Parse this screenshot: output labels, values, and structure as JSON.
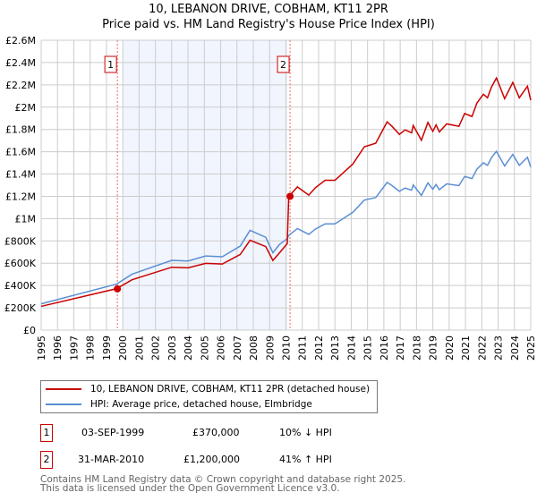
{
  "title": "10, LEBANON DRIVE, COBHAM, KT11 2PR",
  "subtitle": "Price paid vs. HM Land Registry's House Price Index (HPI)",
  "chart_data": {
    "type": "line",
    "xlim": [
      1995,
      2025
    ],
    "ylim": [
      0,
      2600000
    ],
    "x_ticks": [
      "1995",
      "1996",
      "1997",
      "1998",
      "1999",
      "2000",
      "2001",
      "2002",
      "2003",
      "2004",
      "2005",
      "2006",
      "2007",
      "2008",
      "2009",
      "2010",
      "2011",
      "2012",
      "2013",
      "2014",
      "2015",
      "2016",
      "2017",
      "2018",
      "2019",
      "2020",
      "2021",
      "2022",
      "2023",
      "2024",
      "2025"
    ],
    "y_ticks": [
      {
        "v": 0,
        "label": "£0"
      },
      {
        "v": 200000,
        "label": "£200K"
      },
      {
        "v": 400000,
        "label": "£400K"
      },
      {
        "v": 600000,
        "label": "£600K"
      },
      {
        "v": 800000,
        "label": "£800K"
      },
      {
        "v": 1000000,
        "label": "£1M"
      },
      {
        "v": 1200000,
        "label": "£1.2M"
      },
      {
        "v": 1400000,
        "label": "£1.4M"
      },
      {
        "v": 1600000,
        "label": "£1.6M"
      },
      {
        "v": 1800000,
        "label": "£1.8M"
      },
      {
        "v": 2000000,
        "label": "£2M"
      },
      {
        "v": 2200000,
        "label": "£2.2M"
      },
      {
        "v": 2400000,
        "label": "£2.4M"
      },
      {
        "v": 2600000,
        "label": "£2.6M"
      }
    ],
    "grid": true,
    "shaded_range": [
      2000.0,
      2010.1
    ],
    "series": [
      {
        "name": "10, LEBANON DRIVE, COBHAM, KT11 2PR (detached house)",
        "color": "#cc0000",
        "x": [
          1995,
          1999.62,
          2000.57,
          2003,
          2004,
          2005.08,
          2006.1,
          2007.2,
          2007.8,
          2008.76,
          2009.2,
          2009.6,
          2010.08,
          2010.17,
          2010.7,
          2011.4,
          2011.8,
          2012.4,
          2013,
          2013.5,
          2014.1,
          2014.8,
          2015.5,
          2016.2,
          2016.5,
          2016.95,
          2017.3,
          2017.7,
          2017.8,
          2018.3,
          2018.7,
          2019,
          2019.2,
          2019.4,
          2019.85,
          2020.6,
          2020.95,
          2021.4,
          2021.7,
          2022.1,
          2022.35,
          2022.6,
          2022.9,
          2023.4,
          2023.9,
          2024.3,
          2024.8,
          2025
        ],
        "y": [
          213,
          372,
          452,
          564,
          559,
          599,
          593,
          679,
          806,
          750,
          625,
          692,
          777,
          1197,
          1285,
          1211,
          1277,
          1344,
          1344,
          1410,
          1490,
          1644,
          1676,
          1868,
          1828,
          1756,
          1796,
          1770,
          1836,
          1703,
          1863,
          1783,
          1841,
          1777,
          1850,
          1828,
          1943,
          1916,
          2036,
          2116,
          2084,
          2182,
          2262,
          2076,
          2222,
          2084,
          2187,
          2062
        ],
        "y_unit": "thousands GBP"
      },
      {
        "name": "HPI: Average price, detached house, Elmbridge",
        "color": "#5b8fd4",
        "x": [
          1995,
          1999.62,
          2000.57,
          2003,
          2004,
          2005.08,
          2006.1,
          2007.2,
          2007.8,
          2008.76,
          2009.2,
          2009.6,
          2010.08,
          2010.17,
          2010.7,
          2011.4,
          2011.8,
          2012.4,
          2013,
          2013.5,
          2014.1,
          2014.8,
          2015.5,
          2016.2,
          2016.5,
          2016.95,
          2017.3,
          2017.7,
          2017.8,
          2018.3,
          2018.7,
          2019,
          2019.2,
          2019.4,
          2019.85,
          2020.6,
          2020.95,
          2021.4,
          2021.7,
          2022.1,
          2022.35,
          2022.6,
          2022.9,
          2023.4,
          2023.9,
          2024.3,
          2024.8,
          2025
        ],
        "y": [
          236,
          413,
          502,
          626,
          620,
          665,
          658,
          754,
          895,
          833,
          694,
          768,
          820,
          849,
          911,
          859,
          906,
          953,
          953,
          1000,
          1057,
          1166,
          1189,
          1325,
          1296,
          1245,
          1274,
          1255,
          1302,
          1208,
          1321,
          1264,
          1306,
          1260,
          1312,
          1296,
          1378,
          1359,
          1444,
          1501,
          1478,
          1548,
          1604,
          1472,
          1576,
          1478,
          1551,
          1462
        ],
        "y_unit": "thousands GBP"
      }
    ],
    "annotations": [
      {
        "label": "1",
        "x": 1999.67,
        "y": 370000
      },
      {
        "label": "2",
        "x": 2010.25,
        "y": 1200000
      }
    ]
  },
  "legend": {
    "items": [
      {
        "label": "10, LEBANON DRIVE, COBHAM, KT11 2PR (detached house)",
        "color": "#cc0000"
      },
      {
        "label": "HPI: Average price, detached house, Elmbridge",
        "color": "#5b8fd4"
      }
    ]
  },
  "sales": [
    {
      "num": "1",
      "date": "03-SEP-1999",
      "price": "£370,000",
      "hpi": "10% ↓ HPI"
    },
    {
      "num": "2",
      "date": "31-MAR-2010",
      "price": "£1,200,000",
      "hpi": "41% ↑ HPI"
    }
  ],
  "footer": {
    "line1": "Contains HM Land Registry data © Crown copyright and database right 2025.",
    "line2": "This data is licensed under the Open Government Licence v3.0."
  }
}
